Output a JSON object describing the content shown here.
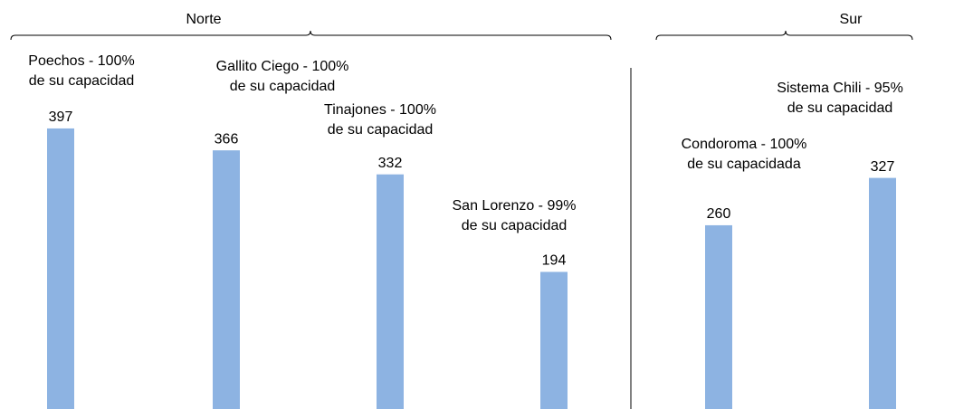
{
  "chart_data": {
    "type": "bar",
    "categories": [
      [
        "Poechos - 100%",
        "de su capacidad"
      ],
      [
        "Gallito Ciego - 100%",
        "de su capacidad"
      ],
      [
        "Tinajones - 100%",
        "de su capacidad"
      ],
      [
        "San Lorenzo - 99%",
        "de su capacidad"
      ],
      [
        "Condoroma - 100%",
        "de su capacidada"
      ],
      [
        "Sistema Chili - 95%",
        "de su capacidad"
      ]
    ],
    "values": [
      397,
      366,
      332,
      194,
      260,
      327
    ],
    "color": "#8db3e2",
    "groups": [
      "Norte",
      "Sur"
    ]
  }
}
